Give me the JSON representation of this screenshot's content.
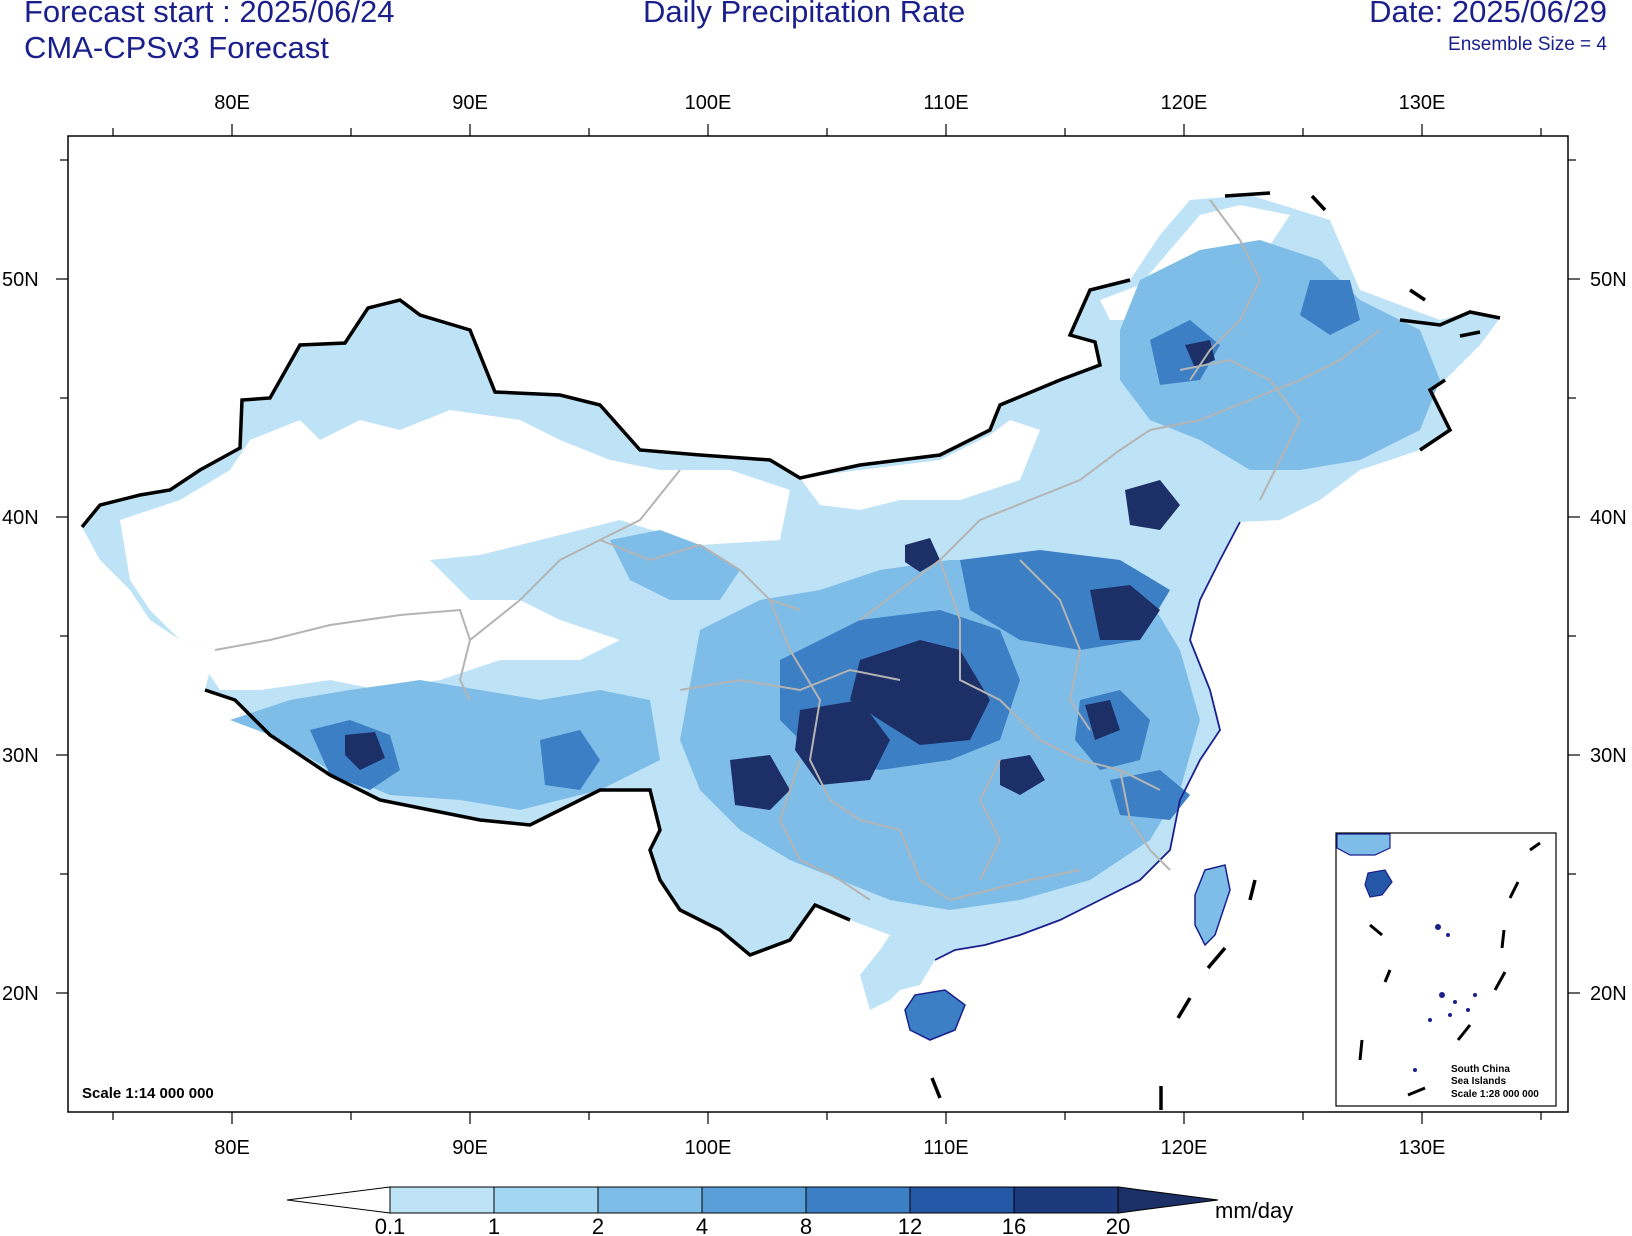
{
  "header": {
    "forecast_start": "Forecast start : 2025/06/24",
    "model": "CMA-CPSv3 Forecast",
    "title": "Daily Precipitation Rate",
    "date": "Date: 2025/06/29",
    "ensemble": "Ensemble Size = 4"
  },
  "axes": {
    "lon_labels": [
      "80E",
      "90E",
      "100E",
      "110E",
      "120E",
      "130E"
    ],
    "lat_labels": [
      "50N",
      "40N",
      "30N",
      "20N"
    ]
  },
  "map": {
    "scale_text": "Scale 1:14 000 000",
    "inset": {
      "line1": "South China",
      "line2": "Sea Islands",
      "line3": "Scale 1:28 000 000"
    }
  },
  "colorbar": {
    "unit": "mm/day",
    "levels": [
      "0.1",
      "1",
      "2",
      "4",
      "8",
      "12",
      "16",
      "20"
    ],
    "colors": [
      "#ffffff",
      "#bfe3f6",
      "#a3d6f2",
      "#7ebde8",
      "#5a9fd8",
      "#3c7fc4",
      "#2457a6",
      "#1a3a7c",
      "#1c2f66"
    ]
  }
}
